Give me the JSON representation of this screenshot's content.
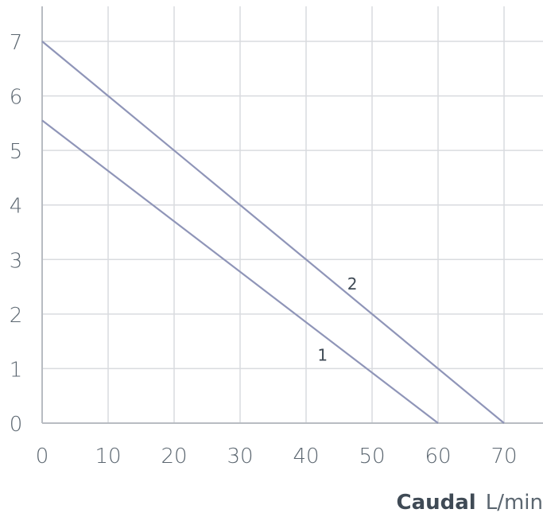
{
  "chart_data": {
    "type": "line",
    "xlim": [
      0,
      70
    ],
    "ylim": [
      0,
      7
    ],
    "x_ticks": [
      0,
      10,
      20,
      30,
      40,
      50,
      60,
      70
    ],
    "y_ticks": [
      0,
      1,
      2,
      3,
      4,
      5,
      6,
      7
    ],
    "grid": true,
    "xlabel": {
      "bold": "Caudal",
      "unit": "L/min"
    },
    "series": [
      {
        "name": "1",
        "points": [
          [
            0,
            5.55
          ],
          [
            60,
            0
          ]
        ],
        "label_at": [
          42.5,
          1.25
        ]
      },
      {
        "name": "2",
        "points": [
          [
            0,
            7.0
          ],
          [
            70,
            0
          ]
        ],
        "label_at": [
          47.0,
          2.55
        ]
      }
    ],
    "colors": {
      "line": "#8f95b8",
      "grid": "#d9dbdf",
      "axis": "#b8bcc2"
    }
  }
}
